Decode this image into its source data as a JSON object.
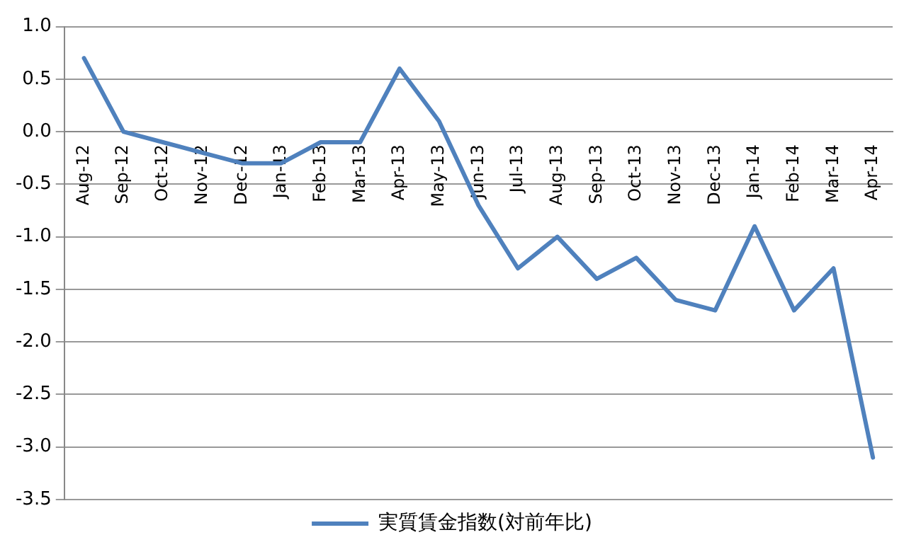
{
  "chart_data": {
    "type": "line",
    "categories": [
      "Aug-12",
      "Sep-12",
      "Oct-12",
      "Nov-12",
      "Dec-12",
      "Jan-13",
      "Feb-13",
      "Mar-13",
      "Apr-13",
      "May-13",
      "Jun-13",
      "Jul-13",
      "Aug-13",
      "Sep-13",
      "Oct-13",
      "Nov-13",
      "Dec-13",
      "Jan-14",
      "Feb-14",
      "Mar-14",
      "Apr-14"
    ],
    "series": [
      {
        "name": "実質賃金指数(対前年比)",
        "color": "#4f81bd",
        "values": [
          0.7,
          0.0,
          -0.1,
          -0.2,
          -0.3,
          -0.3,
          -0.1,
          -0.1,
          0.6,
          0.1,
          -0.7,
          -1.3,
          -1.0,
          -1.4,
          -1.2,
          -1.6,
          -1.7,
          -0.9,
          -1.7,
          -1.3,
          -3.1
        ]
      }
    ],
    "ylim": [
      -3.5,
      1
    ],
    "yticks": [
      {
        "value": 1,
        "label": "1.0"
      },
      {
        "value": 0.5,
        "label": "0.5"
      },
      {
        "value": 0,
        "label": "0.0"
      },
      {
        "value": -0.5,
        "label": "-0.5"
      },
      {
        "value": -1,
        "label": "-1.0"
      },
      {
        "value": -1.5,
        "label": "-1.5"
      },
      {
        "value": -2,
        "label": "-2.0"
      },
      {
        "value": -2.5,
        "label": "-2.5"
      },
      {
        "value": -3,
        "label": "-3.0"
      },
      {
        "value": -3.5,
        "label": "-3.5"
      }
    ],
    "grid": "y",
    "legend": "bottom",
    "marker": "none",
    "line_style": "solid"
  }
}
